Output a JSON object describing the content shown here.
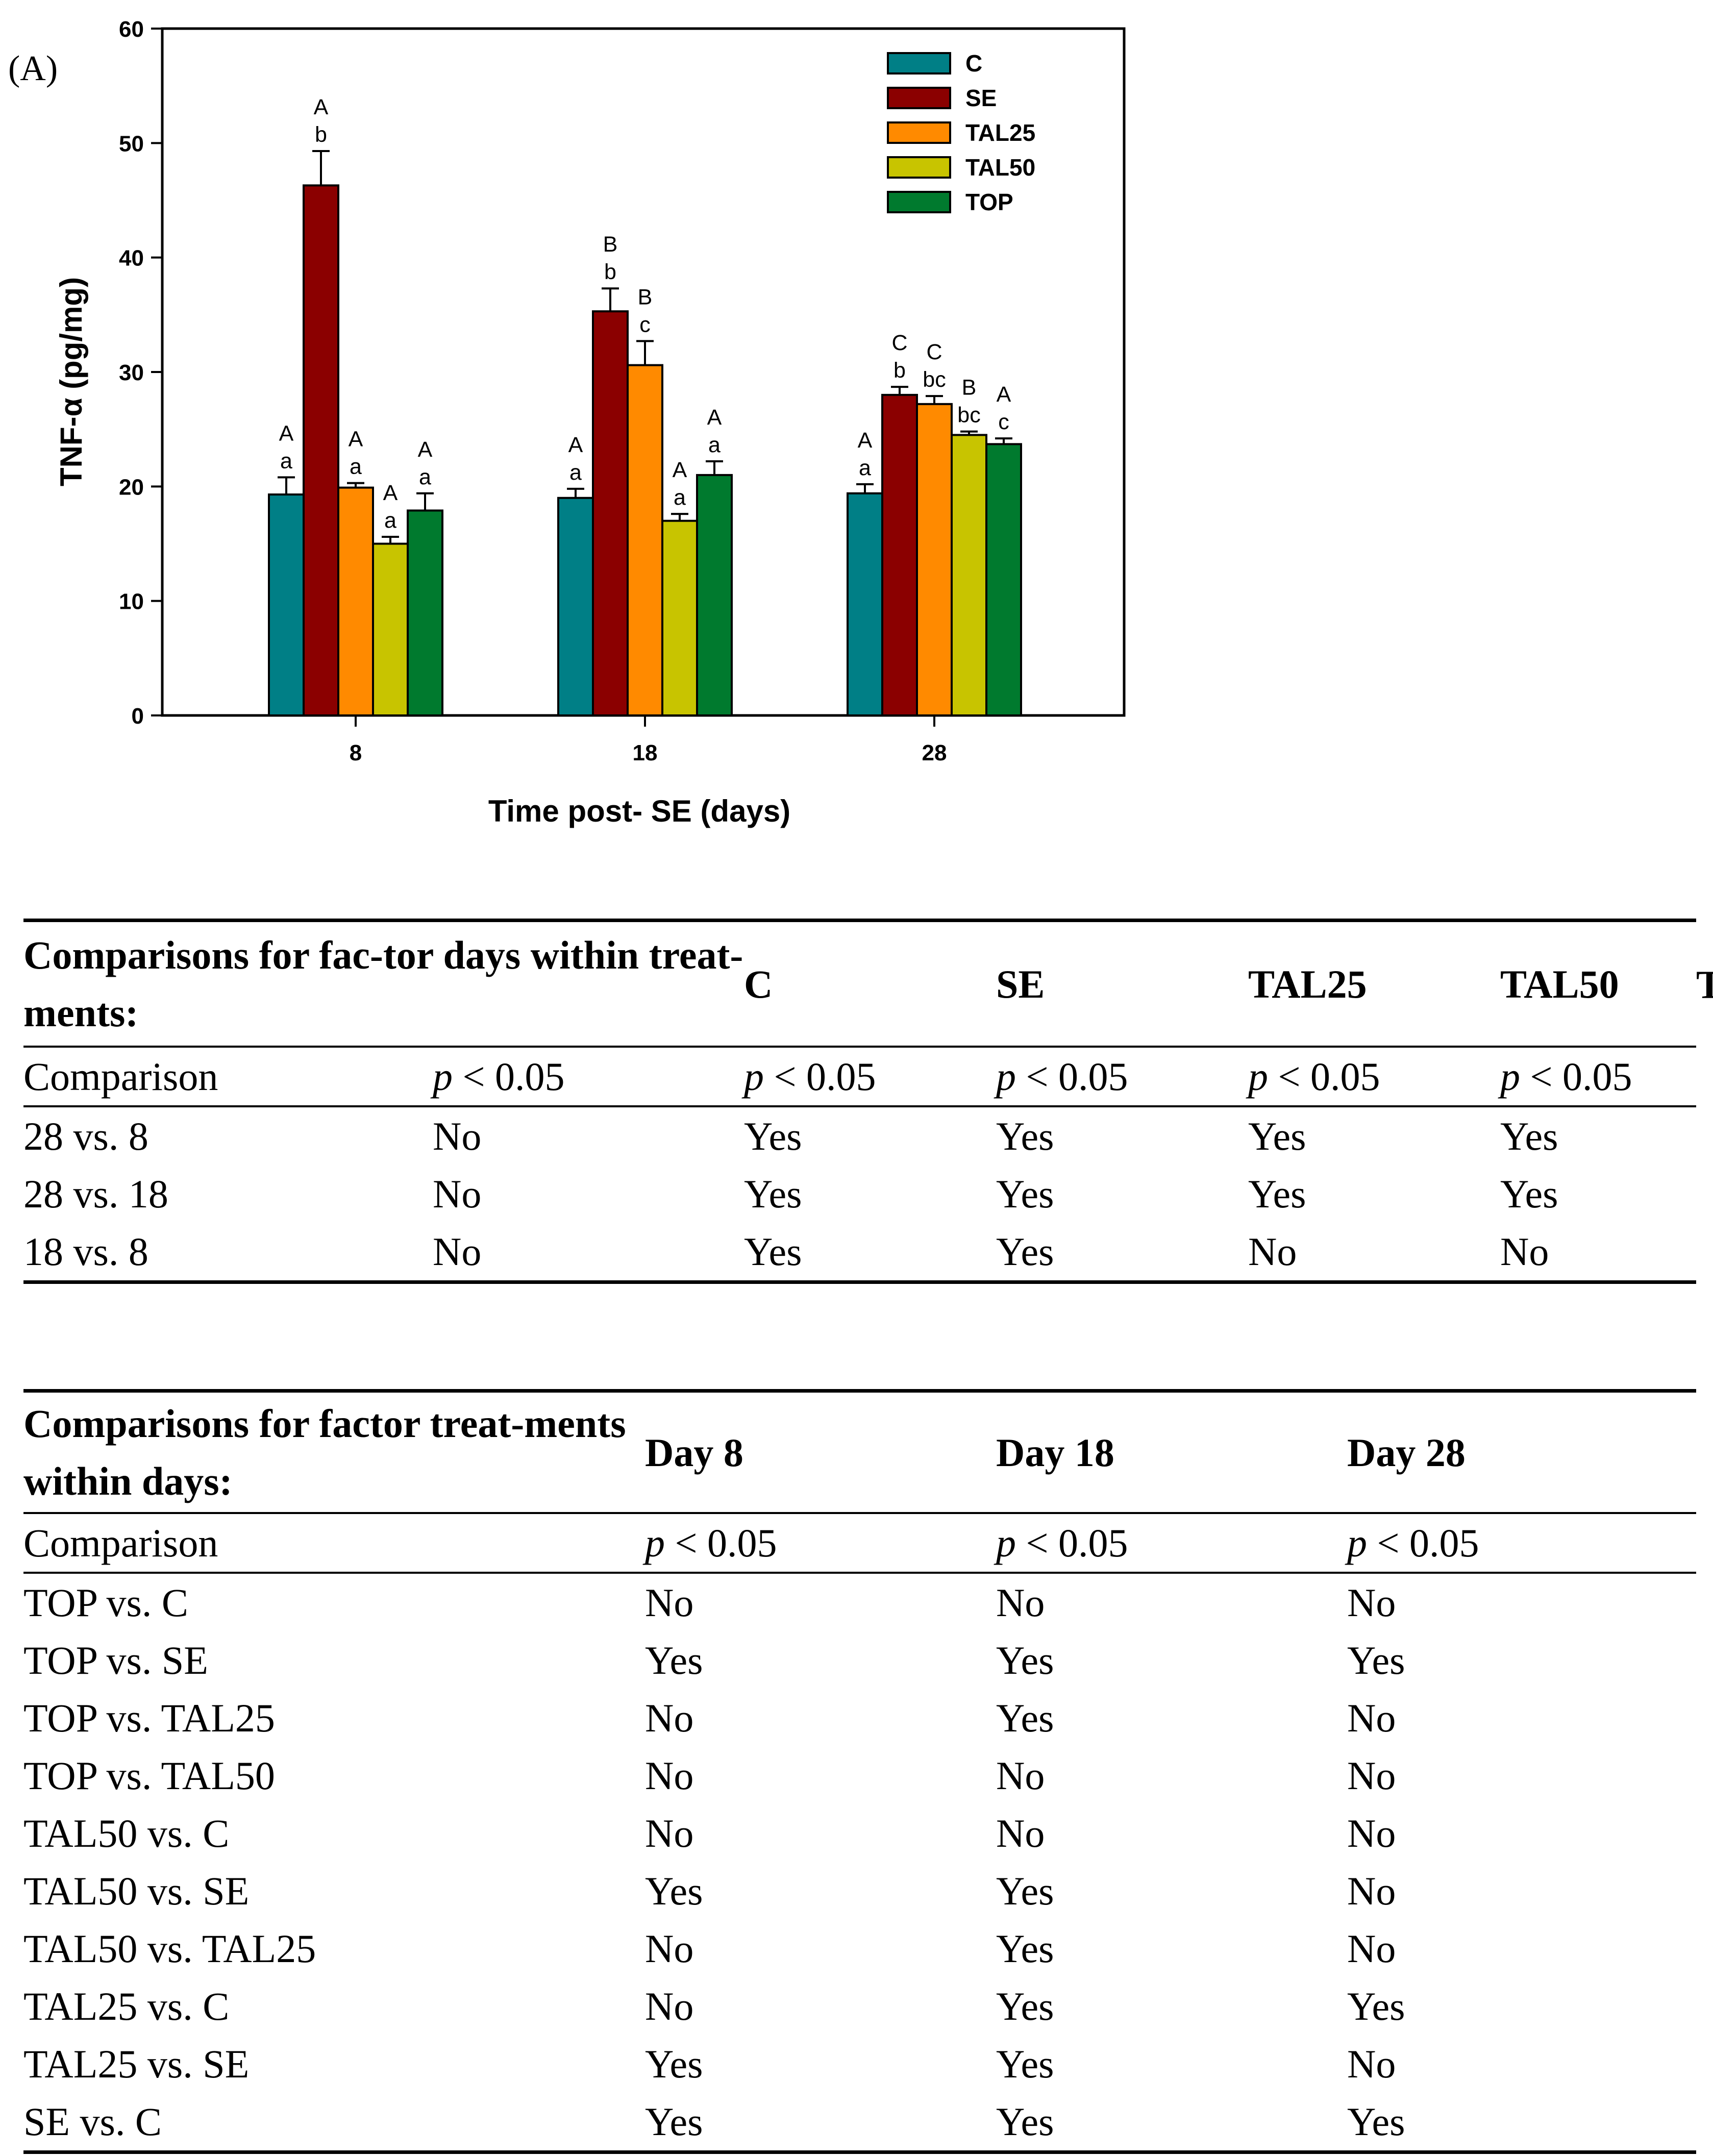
{
  "panel_label": "(A)",
  "chart_data": {
    "type": "bar",
    "title": "",
    "xlabel": "Time post- SE (days)",
    "ylabel": "TNF-α (pg/mg)",
    "ylim": [
      0,
      60
    ],
    "yticks": [
      0,
      10,
      20,
      30,
      40,
      50,
      60
    ],
    "categories": [
      "8",
      "18",
      "28"
    ],
    "legend_position": "top-right",
    "grid": false,
    "series": [
      {
        "name": "C",
        "color": "#007f86",
        "values": [
          19.3,
          19.0,
          19.4
        ],
        "errors": [
          1.5,
          0.8,
          0.8
        ],
        "upper_letters": [
          "A",
          "A",
          "A"
        ],
        "lower_letters": [
          "a",
          "a",
          "a"
        ]
      },
      {
        "name": "SE",
        "color": "#8b0000",
        "values": [
          46.3,
          35.3,
          28.0
        ],
        "errors": [
          3.0,
          2.0,
          0.7
        ],
        "upper_letters": [
          "A",
          "B",
          "C"
        ],
        "lower_letters": [
          "b",
          "b",
          "b"
        ]
      },
      {
        "name": "TAL25",
        "color": "#ff8a00",
        "values": [
          19.9,
          30.6,
          27.2
        ],
        "errors": [
          0.4,
          2.1,
          0.7
        ],
        "upper_letters": [
          "A",
          "B",
          "C"
        ],
        "lower_letters": [
          "a",
          "c",
          "bc"
        ]
      },
      {
        "name": "TAL50",
        "color": "#c8c400",
        "values": [
          15.0,
          17.0,
          24.5
        ],
        "errors": [
          0.6,
          0.6,
          0.3
        ],
        "upper_letters": [
          "A",
          "A",
          "B"
        ],
        "lower_letters": [
          "a",
          "a",
          "bc"
        ]
      },
      {
        "name": "TOP",
        "color": "#007a2e",
        "values": [
          17.9,
          21.0,
          23.7
        ],
        "errors": [
          1.5,
          1.2,
          0.5
        ],
        "upper_letters": [
          "A",
          "A",
          "A"
        ],
        "lower_letters": [
          "a",
          "a",
          "c"
        ]
      }
    ]
  },
  "table1": {
    "header_label": "Comparisons for fac-tor days within treat-ments:",
    "columns": [
      "C",
      "SE",
      "TAL25",
      "TAL50",
      "TOP"
    ],
    "subheader_label": "Comparison",
    "p_label": "p",
    "p_rest": " < 0.05",
    "rows": [
      {
        "label": "28 vs. 8",
        "cells": [
          "No",
          "Yes",
          "Yes",
          "Yes",
          "Yes"
        ]
      },
      {
        "label": "28 vs. 18",
        "cells": [
          "No",
          "Yes",
          "Yes",
          "Yes",
          "Yes"
        ]
      },
      {
        "label": "18 vs. 8",
        "cells": [
          "No",
          "Yes",
          "Yes",
          "No",
          "No"
        ]
      }
    ]
  },
  "table2": {
    "header_label": "Comparisons for factor treat-ments within days:",
    "columns": [
      "Day 8",
      "Day 18",
      "Day 28"
    ],
    "subheader_label": "Comparison",
    "p_label": "p",
    "p_rest": " < 0.05",
    "rows": [
      {
        "label": "TOP vs. C",
        "cells": [
          "No",
          "No",
          "No"
        ]
      },
      {
        "label": "TOP vs. SE",
        "cells": [
          "Yes",
          "Yes",
          "Yes"
        ]
      },
      {
        "label": "TOP vs. TAL25",
        "cells": [
          "No",
          "Yes",
          "No"
        ]
      },
      {
        "label": "TOP vs. TAL50",
        "cells": [
          "No",
          "No",
          "No"
        ]
      },
      {
        "label": "TAL50 vs. C",
        "cells": [
          "No",
          "No",
          "No"
        ]
      },
      {
        "label": "TAL50 vs. SE",
        "cells": [
          "Yes",
          "Yes",
          "No"
        ]
      },
      {
        "label": "TAL50 vs. TAL25",
        "cells": [
          "No",
          "Yes",
          "No"
        ]
      },
      {
        "label": "TAL25 vs. C",
        "cells": [
          "No",
          "Yes",
          "Yes"
        ]
      },
      {
        "label": "TAL25 vs. SE",
        "cells": [
          "Yes",
          "Yes",
          "No"
        ]
      },
      {
        "label": "SE vs. C",
        "cells": [
          "Yes",
          "Yes",
          "Yes"
        ]
      }
    ]
  }
}
